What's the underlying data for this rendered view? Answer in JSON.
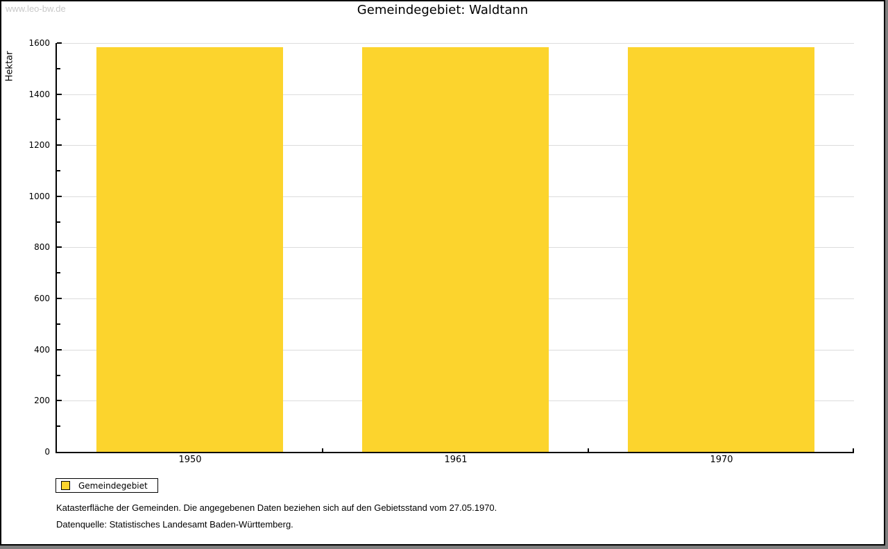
{
  "page": {
    "watermark": "www.leo-bw.de",
    "title": "Gemeindegebiet: Waldtann"
  },
  "chart_data": {
    "type": "bar",
    "title": "Gemeindegebiet: Waldtann",
    "categories": [
      "1950",
      "1961",
      "1970"
    ],
    "series": [
      {
        "name": "Gemeindegebiet",
        "color": "#fcd42d",
        "values": [
          1583,
          1583,
          1583
        ]
      }
    ],
    "xlabel": "",
    "ylabel": "Hektar",
    "ylim": [
      0,
      1600
    ],
    "yticks": [
      0,
      200,
      400,
      600,
      800,
      1000,
      1200,
      1400,
      1600
    ],
    "ytick_step": 200,
    "yminor_step": 100,
    "grid": "horizontal",
    "legend_position": "bottom-left"
  },
  "legend": {
    "label": "Gemeindegebiet",
    "swatch_color": "#fcd42d"
  },
  "footnotes": {
    "line1": "Katasterfläche der Gemeinden. Die angegebenen Daten beziehen sich auf den Gebietsstand vom 27.05.1970.",
    "line2": "Datenquelle: Statistisches Landesamt Baden-Württemberg."
  },
  "colors": {
    "bar": "#fcd42d",
    "grid": "#dcdcdc",
    "axis": "#000000",
    "watermark": "#c8c8c8",
    "frame": "#000000",
    "edge_shadow": "#7f7f7f",
    "background": "#ffffff"
  }
}
